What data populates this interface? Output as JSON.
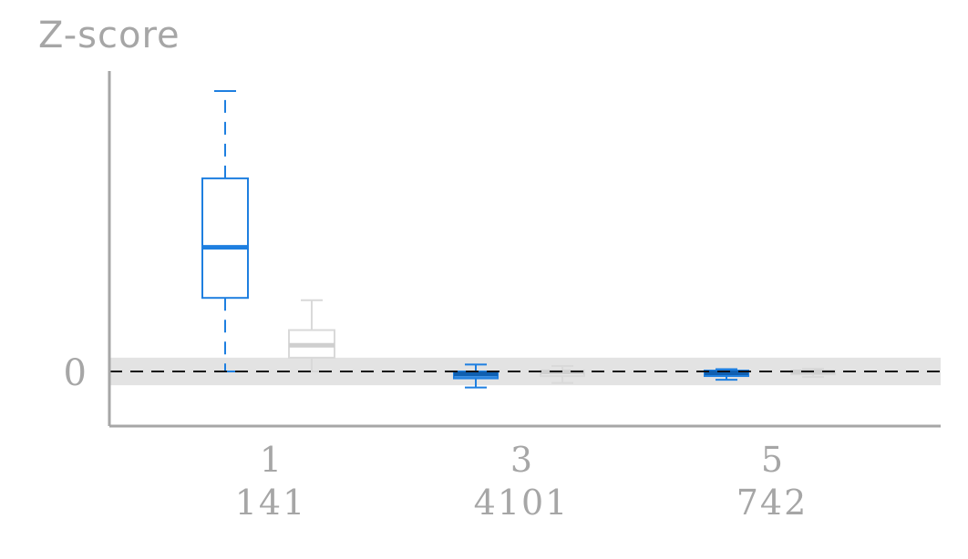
{
  "chart_data": {
    "type": "box",
    "ylabel": "Z-score",
    "y_tick_labels": [
      "0"
    ],
    "reference_band": {
      "ymin": -0.3,
      "ymax": 0.3
    },
    "reference_line": 0,
    "colors": {
      "highlight": "#1e7fe0",
      "muted": "#d9d9d9",
      "band": "#e3e3e3",
      "axis": "#a6a6a6"
    },
    "groups": [
      {
        "label": "1",
        "count": "141",
        "boxes": [
          {
            "series": "highlight",
            "whisker_low": 0.0,
            "q1": 1.6,
            "median": 2.7,
            "q3": 4.2,
            "whisker_high": 6.1
          },
          {
            "series": "muted",
            "whisker_low": 0.0,
            "q1": 0.3,
            "median": 0.57,
            "q3": 0.9,
            "whisker_high": 1.55
          }
        ]
      },
      {
        "label": "3",
        "count": "4101",
        "boxes": [
          {
            "series": "highlight",
            "whisker_low": -0.35,
            "q1": -0.15,
            "median": -0.05,
            "q3": 0.0,
            "whisker_high": 0.15
          },
          {
            "series": "muted",
            "whisker_low": -0.25,
            "q1": -0.1,
            "median": -0.02,
            "q3": 0.02,
            "whisker_high": 0.12
          }
        ]
      },
      {
        "label": "5",
        "count": "742",
        "boxes": [
          {
            "series": "highlight",
            "whisker_low": -0.18,
            "q1": -0.1,
            "median": -0.03,
            "q3": 0.02,
            "whisker_high": 0.05
          },
          {
            "series": "muted",
            "whisker_low": -0.12,
            "q1": -0.06,
            "median": -0.01,
            "q3": 0.02,
            "whisker_high": 0.06
          }
        ]
      }
    ]
  }
}
